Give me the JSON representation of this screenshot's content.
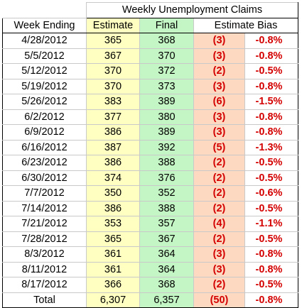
{
  "table": {
    "title": "Weekly Unemployment Claims",
    "headers": {
      "week": "Week Ending",
      "estimate": "Estimate",
      "final": "Final",
      "bias": "Estimate Bias"
    },
    "rows": [
      {
        "week": "4/28/2012",
        "estimate": "365",
        "final": "368",
        "bias": "(3)",
        "pct": "-0.8%"
      },
      {
        "week": "5/5/2012",
        "estimate": "367",
        "final": "370",
        "bias": "(3)",
        "pct": "-0.8%"
      },
      {
        "week": "5/12/2012",
        "estimate": "370",
        "final": "372",
        "bias": "(2)",
        "pct": "-0.5%"
      },
      {
        "week": "5/19/2012",
        "estimate": "370",
        "final": "373",
        "bias": "(3)",
        "pct": "-0.8%"
      },
      {
        "week": "5/26/2012",
        "estimate": "383",
        "final": "389",
        "bias": "(6)",
        "pct": "-1.5%"
      },
      {
        "week": "6/2/2012",
        "estimate": "377",
        "final": "380",
        "bias": "(3)",
        "pct": "-0.8%"
      },
      {
        "week": "6/9/2012",
        "estimate": "386",
        "final": "389",
        "bias": "(3)",
        "pct": "-0.8%"
      },
      {
        "week": "6/16/2012",
        "estimate": "387",
        "final": "392",
        "bias": "(5)",
        "pct": "-1.3%"
      },
      {
        "week": "6/23/2012",
        "estimate": "386",
        "final": "388",
        "bias": "(2)",
        "pct": "-0.5%"
      },
      {
        "week": "6/30/2012",
        "estimate": "374",
        "final": "376",
        "bias": "(2)",
        "pct": "-0.5%"
      },
      {
        "week": "7/7/2012",
        "estimate": "350",
        "final": "352",
        "bias": "(2)",
        "pct": "-0.6%"
      },
      {
        "week": "7/14/2012",
        "estimate": "386",
        "final": "388",
        "bias": "(2)",
        "pct": "-0.5%"
      },
      {
        "week": "7/21/2012",
        "estimate": "353",
        "final": "357",
        "bias": "(4)",
        "pct": "-1.1%"
      },
      {
        "week": "7/28/2012",
        "estimate": "365",
        "final": "367",
        "bias": "(2)",
        "pct": "-0.5%"
      },
      {
        "week": "8/3/2012",
        "estimate": "361",
        "final": "364",
        "bias": "(3)",
        "pct": "-0.8%"
      },
      {
        "week": "8/11/2012",
        "estimate": "361",
        "final": "364",
        "bias": "(3)",
        "pct": "-0.8%"
      },
      {
        "week": "8/17/2012",
        "estimate": "366",
        "final": "368",
        "bias": "(2)",
        "pct": "-0.5%"
      }
    ],
    "total": {
      "label": "Total",
      "estimate": "6,307",
      "final": "6,357",
      "bias": "(50)",
      "pct": "-0.8%"
    }
  },
  "colors": {
    "estimate_fill": "#ffffc1",
    "final_fill": "#c4f5c4",
    "bias_fill": "#fcd9c0",
    "negative_text": "#d40000"
  }
}
